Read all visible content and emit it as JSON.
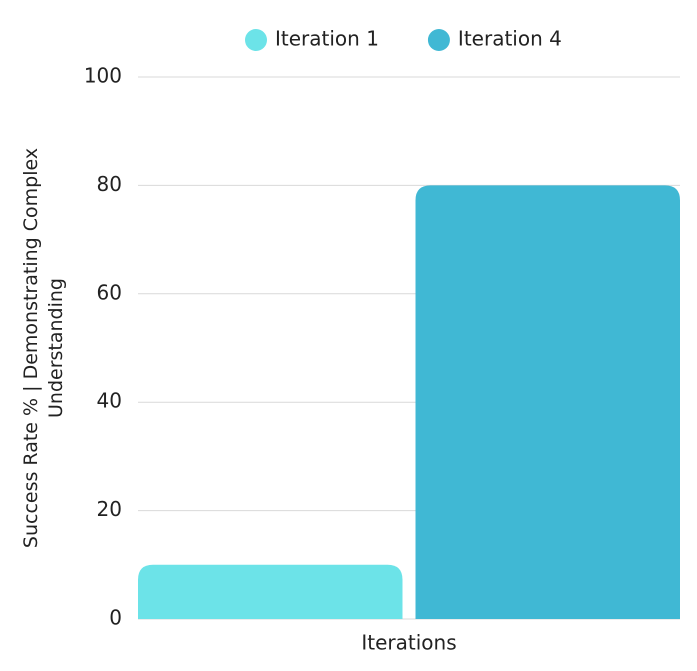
{
  "chart_data": {
    "type": "bar",
    "x_label": "Iterations",
    "y_label": "Success Rate % | Demonstrating Complex Understanding",
    "categories": [
      null
    ],
    "series": [
      {
        "name": "Iteration 1",
        "color": "#6ce3e8",
        "values": [
          10
        ]
      },
      {
        "name": "Iteration 4",
        "color": "#40b8d4",
        "values": [
          80
        ]
      }
    ],
    "ylim": [
      0,
      100
    ],
    "yticks": [
      0,
      20,
      40,
      60,
      80,
      100
    ],
    "grid": true,
    "legend": "top"
  }
}
